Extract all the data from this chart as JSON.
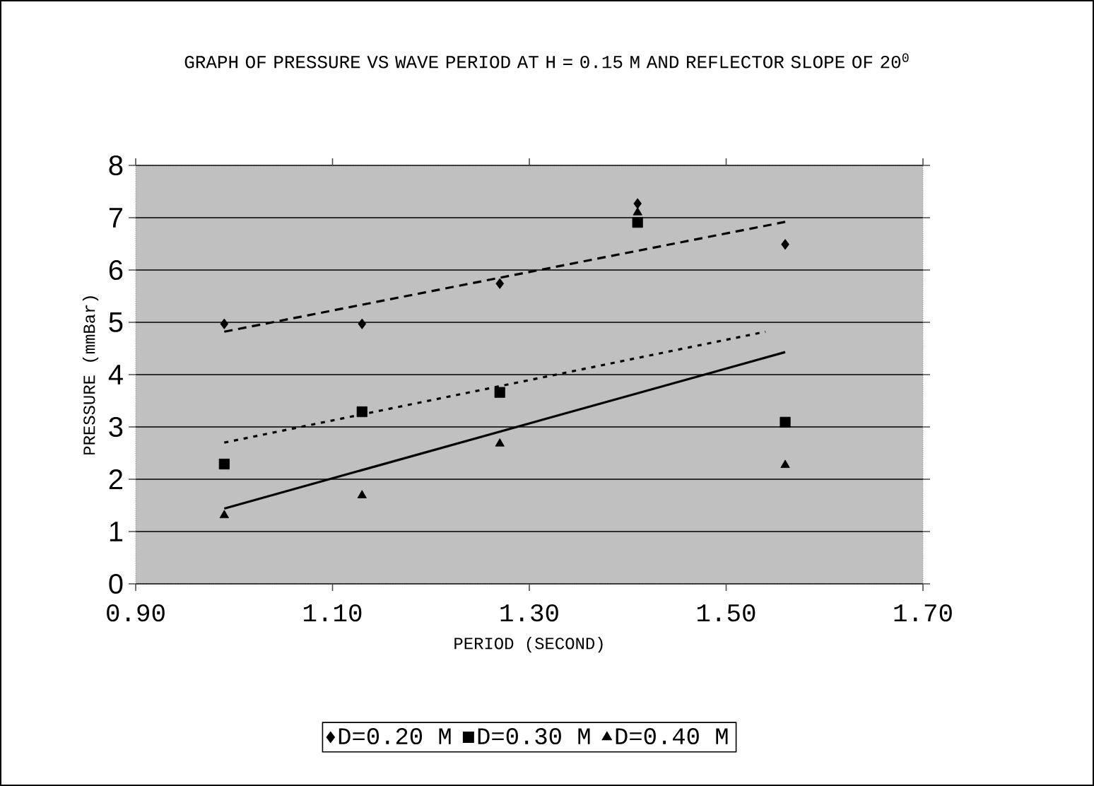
{
  "chart_data": {
    "type": "scatter",
    "title": "GRAPH OF PRESSURE VS WAVE PERIOD AT H = 0.15 M AND REFLECTOR SLOPE OF 20$^{0}$",
    "xlabel": "PERIOD (SECOND)",
    "ylabel": "PRESSURE (mmBar)",
    "xlim": [
      0.9,
      1.7
    ],
    "xticks": [
      {
        "value": 0.9,
        "label": "0.90"
      },
      {
        "value": 1.1,
        "label": "1.10"
      },
      {
        "value": 1.3,
        "label": "1.30"
      },
      {
        "value": 1.5,
        "label": "1.50"
      },
      {
        "value": 1.7,
        "label": "1.70"
      }
    ],
    "ylim": [
      0,
      8
    ],
    "yticks": [
      0,
      1,
      2,
      3,
      4,
      5,
      6,
      7,
      8
    ],
    "grid": "y",
    "legend": "bottom",
    "series": [
      {
        "name": "D=0.20 M",
        "color": "#000000",
        "marker": "diamond",
        "x": [
          0.99,
          1.13,
          1.27,
          1.41,
          1.56
        ],
        "values": [
          4.97,
          4.97,
          5.74,
          7.27,
          6.49
        ]
      },
      {
        "name": "D=0.30 M",
        "color": "#000000",
        "marker": "square",
        "x": [
          0.99,
          1.13,
          1.27,
          1.41,
          1.56
        ],
        "values": [
          2.29,
          3.29,
          3.66,
          6.91,
          3.09
        ]
      },
      {
        "name": "D=0.40 M",
        "color": "#000000",
        "marker": "triangle",
        "x": [
          0.99,
          1.13,
          1.27,
          1.41,
          1.56
        ],
        "values": [
          1.31,
          1.69,
          2.68,
          7.1,
          2.27
        ]
      },
      {
        "type": "line",
        "color": "#000000",
        "marker": "none",
        "line_style": "dashed",
        "x": [
          0.99,
          1.56
        ],
        "values": [
          4.82,
          6.92
        ]
      },
      {
        "type": "line",
        "color": "#000000",
        "marker": "none",
        "line_style": "dotted",
        "x": [
          0.99,
          1.54
        ],
        "values": [
          2.7,
          4.82
        ]
      },
      {
        "type": "line",
        "color": "#000000",
        "marker": "none",
        "line_style": "solid",
        "x": [
          0.99,
          1.56
        ],
        "values": [
          1.44,
          4.43
        ]
      }
    ]
  }
}
